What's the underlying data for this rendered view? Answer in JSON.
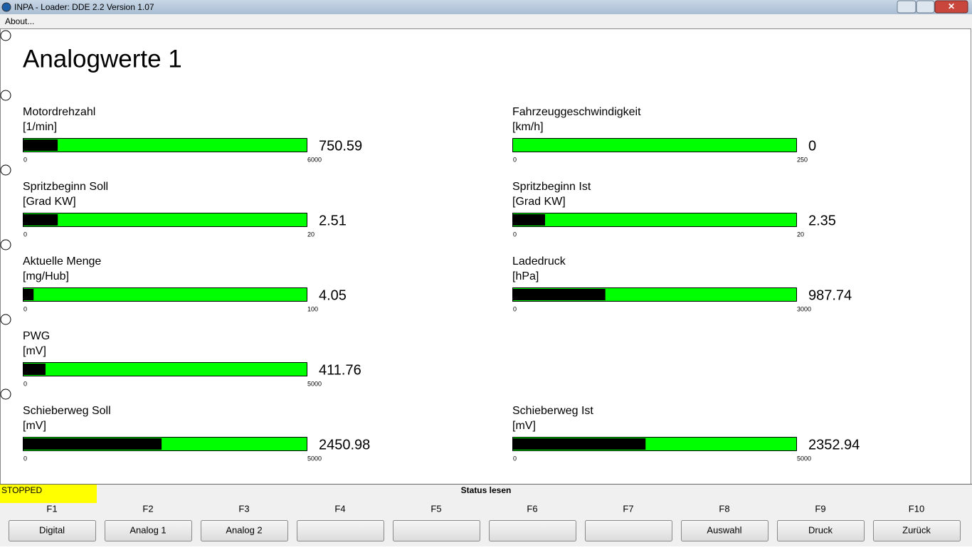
{
  "window": {
    "title": "INPA - Loader:  DDE 2.2 Version 1.07",
    "menu": "About..."
  },
  "page": {
    "title": "Analogwerte 1",
    "rows": [
      {
        "left": {
          "label": "Motordrehzahl",
          "unit": "[1/min]",
          "min": 0,
          "max": 6000,
          "value": 750.59
        },
        "right": {
          "label": "Fahrzeuggeschwindigkeit",
          "unit": "[km/h]",
          "min": 0,
          "max": 250,
          "value": 0
        }
      },
      {
        "left": {
          "label": "Spritzbeginn Soll",
          "unit": "[Grad KW]",
          "min": 0,
          "max": 20,
          "value": 2.51
        },
        "right": {
          "label": "Spritzbeginn Ist",
          "unit": "[Grad KW]",
          "min": 0,
          "max": 20,
          "value": 2.35
        }
      },
      {
        "left": {
          "label": "Aktuelle Menge",
          "unit": "[mg/Hub]",
          "min": 0,
          "max": 100,
          "value": 4.05
        },
        "right": {
          "label": "Ladedruck",
          "unit": "[hPa]",
          "min": 0,
          "max": 3000,
          "value": 987.74
        }
      },
      {
        "left": {
          "label": "PWG",
          "unit": "[mV]",
          "min": 0,
          "max": 5000,
          "value": 411.76
        }
      },
      {
        "left": {
          "label": "Schieberweg Soll",
          "unit": "[mV]",
          "min": 0,
          "max": 5000,
          "value": 2450.98
        },
        "right": {
          "label": "Schieberweg Ist",
          "unit": "[mV]",
          "min": 0,
          "max": 5000,
          "value": 2352.94
        }
      }
    ]
  },
  "status": {
    "state": "STOPPED",
    "message": "Status lesen"
  },
  "keys": [
    {
      "key": "F1",
      "label": "Digital"
    },
    {
      "key": "F2",
      "label": "Analog 1"
    },
    {
      "key": "F3",
      "label": "Analog 2"
    },
    {
      "key": "F4"
    },
    {
      "key": "F5"
    },
    {
      "key": "F6"
    },
    {
      "key": "F7"
    },
    {
      "key": "F8",
      "label": "Auswahl"
    },
    {
      "key": "F9",
      "label": "Druck"
    },
    {
      "key": "F10",
      "label": "Zurück"
    }
  ]
}
